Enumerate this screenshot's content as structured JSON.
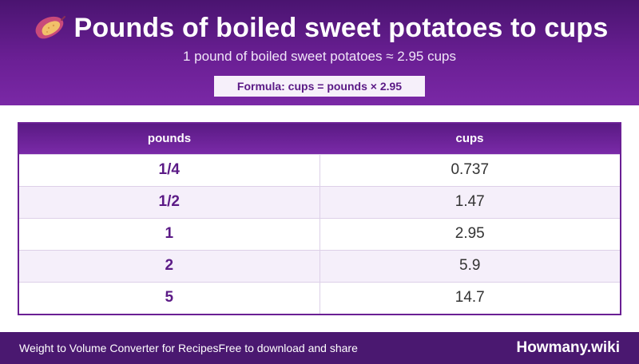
{
  "header": {
    "icon": "sweet-potato-icon",
    "title": "Pounds of boiled sweet potatoes to cups",
    "subtitle": "1 pound of boiled sweet potatoes ≈ 2.95 cups",
    "formula": "Formula: cups = pounds × 2.95"
  },
  "table": {
    "columns": [
      "pounds",
      "cups"
    ],
    "rows": [
      {
        "pounds": "1/4",
        "cups": "0.737"
      },
      {
        "pounds": "1/2",
        "cups": "1.47"
      },
      {
        "pounds": "1",
        "cups": "2.95"
      },
      {
        "pounds": "2",
        "cups": "5.9"
      },
      {
        "pounds": "5",
        "cups": "14.7"
      }
    ]
  },
  "footer": {
    "left_text": "Weight to Volume Converter for Recipes",
    "mid_text": "Free to download and share",
    "brand": "Howmany.wiki"
  },
  "colors": {
    "header_purple": "#6a1f94",
    "footer_purple": "#4a1870",
    "accent_text": "#5b1a86"
  }
}
